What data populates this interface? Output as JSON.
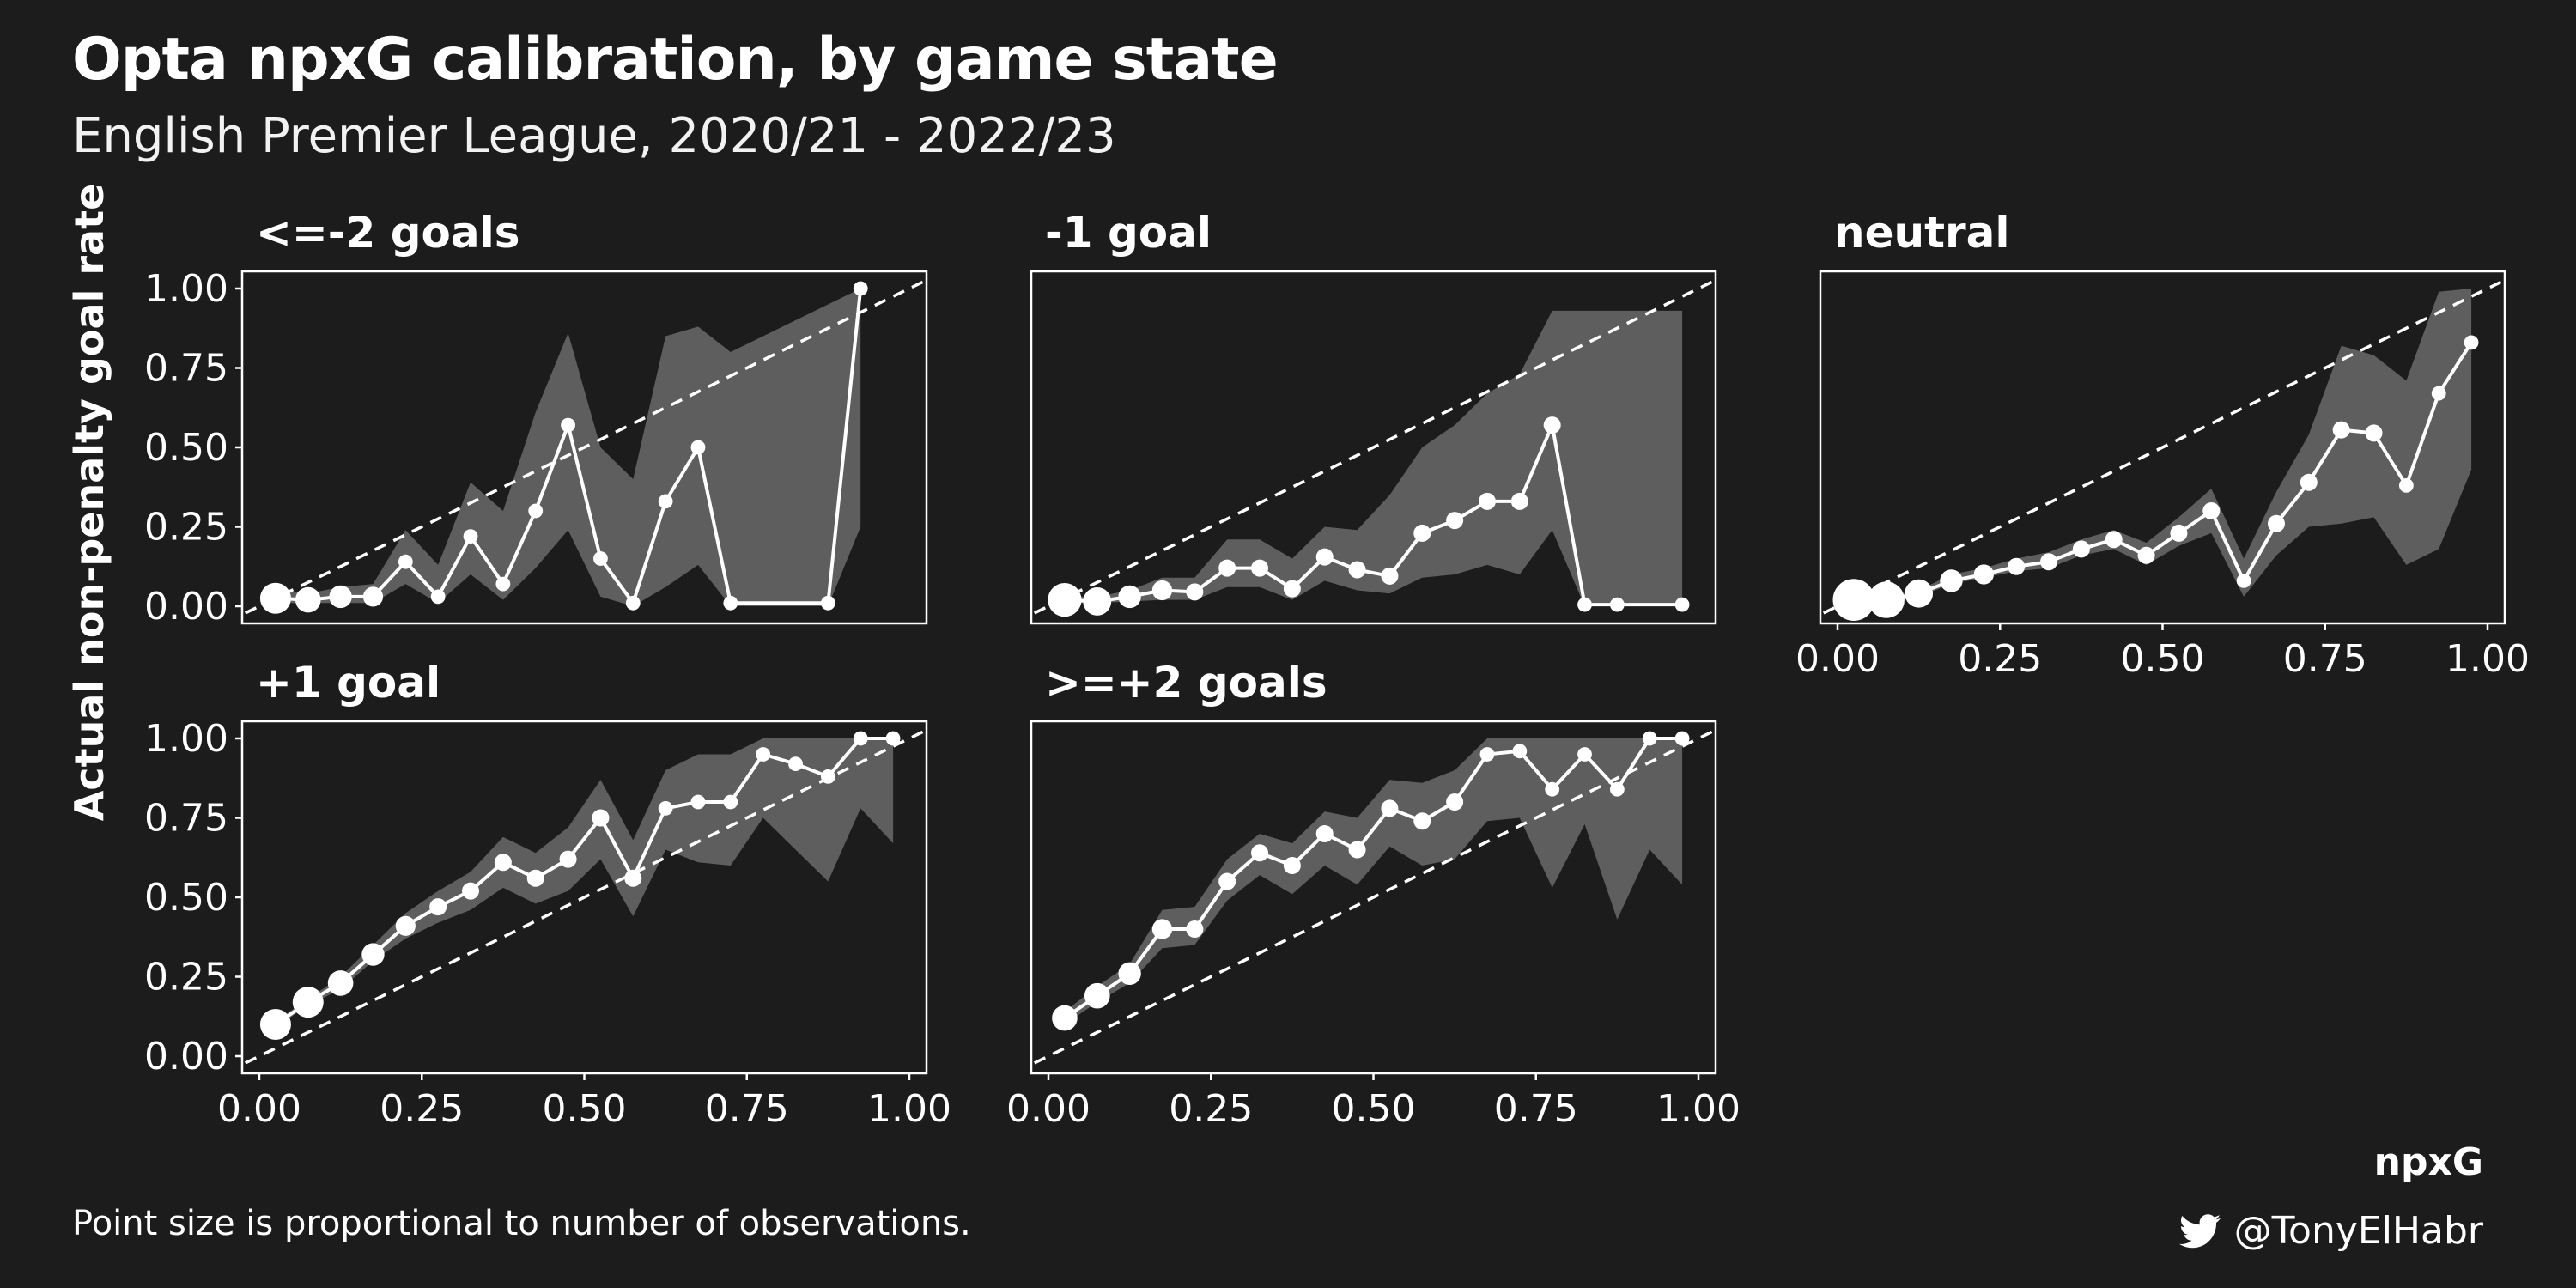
{
  "title": "Opta npxG calibration, by game state",
  "subtitle": "English Premier League, 2020/21 - 2022/23",
  "caption": "Point size is proportional to number of observations.",
  "brand": "npxG",
  "handle": "@TonyElHabr",
  "icons": {
    "social": "twitter-icon"
  },
  "colors": {
    "background": "#1c1c1c",
    "band": "#5e5e5e",
    "line": "#ffffff",
    "reference": "#ffffff"
  },
  "chart_data": {
    "type": "line",
    "xlabel": "",
    "ylabel": "Actual non-penalty goal rate",
    "xlim": [
      0,
      1
    ],
    "ylim": [
      0,
      1
    ],
    "x_ticks": [
      "0.00",
      "0.25",
      "0.50",
      "0.75",
      "1.00"
    ],
    "y_ticks": [
      "0.00",
      "0.25",
      "0.50",
      "0.75",
      "1.00"
    ],
    "reference_line": "y = x (dashed)",
    "grid": false,
    "panels": [
      {
        "title": "<=-2 goals",
        "x": [
          0.025,
          0.075,
          0.125,
          0.175,
          0.225,
          0.275,
          0.325,
          0.375,
          0.425,
          0.475,
          0.525,
          0.575,
          0.625,
          0.675,
          0.725,
          0.875,
          0.925
        ],
        "y": [
          0.025,
          0.02,
          0.03,
          0.03,
          0.14,
          0.03,
          0.22,
          0.07,
          0.3,
          0.57,
          0.15,
          0.01,
          0.33,
          0.5,
          0.01,
          0.01,
          1.0
        ],
        "lower": [
          0.01,
          0.01,
          0.01,
          0.01,
          0.07,
          0.01,
          0.1,
          0.02,
          0.12,
          0.24,
          0.03,
          0.0,
          0.06,
          0.13,
          0.0,
          0.0,
          0.25
        ],
        "upper": [
          0.05,
          0.04,
          0.06,
          0.07,
          0.24,
          0.13,
          0.39,
          0.3,
          0.61,
          0.86,
          0.5,
          0.4,
          0.85,
          0.88,
          0.8,
          0.95,
          1.0
        ],
        "size": [
          10,
          8,
          7,
          6,
          4,
          4,
          4,
          4,
          4,
          4,
          4,
          4,
          4,
          4,
          4,
          4,
          4
        ]
      },
      {
        "title": "-1 goal",
        "x": [
          0.025,
          0.075,
          0.125,
          0.175,
          0.225,
          0.275,
          0.325,
          0.375,
          0.425,
          0.475,
          0.525,
          0.575,
          0.625,
          0.675,
          0.725,
          0.775,
          0.825,
          0.875,
          0.975
        ],
        "y": [
          0.02,
          0.015,
          0.03,
          0.05,
          0.045,
          0.12,
          0.12,
          0.055,
          0.155,
          0.115,
          0.095,
          0.23,
          0.27,
          0.33,
          0.33,
          0.57,
          0.005,
          0.005,
          0.005
        ],
        "lower": [
          0.01,
          0.01,
          0.015,
          0.02,
          0.02,
          0.06,
          0.06,
          0.02,
          0.08,
          0.05,
          0.04,
          0.09,
          0.1,
          0.13,
          0.1,
          0.24,
          0.0,
          0.0,
          0.0
        ],
        "upper": [
          0.03,
          0.03,
          0.05,
          0.09,
          0.09,
          0.21,
          0.21,
          0.15,
          0.25,
          0.24,
          0.35,
          0.5,
          0.57,
          0.67,
          0.73,
          0.93,
          0.93,
          0.93,
          0.93
        ],
        "size": [
          11,
          9,
          7,
          6,
          5,
          5,
          5,
          5,
          5,
          5,
          5,
          5,
          5,
          5,
          5,
          5,
          4,
          4,
          4
        ]
      },
      {
        "title": "neutral",
        "x": [
          0.025,
          0.075,
          0.125,
          0.175,
          0.225,
          0.275,
          0.325,
          0.375,
          0.425,
          0.475,
          0.525,
          0.575,
          0.625,
          0.675,
          0.725,
          0.775,
          0.825,
          0.875,
          0.925,
          0.975
        ],
        "y": [
          0.02,
          0.02,
          0.04,
          0.08,
          0.1,
          0.125,
          0.14,
          0.18,
          0.21,
          0.16,
          0.23,
          0.3,
          0.08,
          0.26,
          0.39,
          0.555,
          0.545,
          0.38,
          0.67,
          0.83
        ],
        "lower": [
          0.01,
          0.01,
          0.03,
          0.07,
          0.09,
          0.11,
          0.12,
          0.16,
          0.18,
          0.13,
          0.19,
          0.23,
          0.03,
          0.16,
          0.25,
          0.26,
          0.28,
          0.13,
          0.18,
          0.43
        ],
        "upper": [
          0.03,
          0.03,
          0.05,
          0.1,
          0.12,
          0.15,
          0.17,
          0.21,
          0.24,
          0.2,
          0.28,
          0.37,
          0.15,
          0.36,
          0.54,
          0.82,
          0.79,
          0.71,
          0.99,
          1.0
        ],
        "size": [
          14,
          12,
          9,
          7,
          6,
          5,
          5,
          5,
          5,
          5,
          5,
          5,
          4,
          5,
          5,
          5,
          5,
          4,
          4,
          4
        ]
      },
      {
        "title": "+1 goal",
        "x": [
          0.025,
          0.075,
          0.125,
          0.175,
          0.225,
          0.275,
          0.325,
          0.375,
          0.425,
          0.475,
          0.525,
          0.575,
          0.625,
          0.675,
          0.725,
          0.775,
          0.825,
          0.875,
          0.925,
          0.975
        ],
        "y": [
          0.1,
          0.17,
          0.23,
          0.32,
          0.41,
          0.47,
          0.52,
          0.61,
          0.56,
          0.62,
          0.75,
          0.56,
          0.78,
          0.8,
          0.8,
          0.95,
          0.92,
          0.88,
          1.0,
          1.0
        ],
        "lower": [
          0.09,
          0.16,
          0.21,
          0.3,
          0.37,
          0.42,
          0.46,
          0.53,
          0.48,
          0.52,
          0.62,
          0.44,
          0.65,
          0.61,
          0.6,
          0.75,
          0.65,
          0.55,
          0.78,
          0.67
        ],
        "upper": [
          0.11,
          0.18,
          0.25,
          0.35,
          0.45,
          0.52,
          0.58,
          0.69,
          0.64,
          0.72,
          0.87,
          0.68,
          0.9,
          0.95,
          0.95,
          1.0,
          1.0,
          1.0,
          1.0,
          1.0
        ],
        "size": [
          10,
          10,
          8,
          7,
          6,
          5,
          5,
          5,
          5,
          5,
          5,
          5,
          4,
          4,
          4,
          4,
          4,
          4,
          4,
          4
        ]
      },
      {
        "title": ">=+2 goals",
        "x": [
          0.025,
          0.075,
          0.125,
          0.175,
          0.225,
          0.275,
          0.325,
          0.375,
          0.425,
          0.475,
          0.525,
          0.575,
          0.625,
          0.675,
          0.725,
          0.775,
          0.825,
          0.875,
          0.925,
          0.975
        ],
        "y": [
          0.12,
          0.19,
          0.26,
          0.4,
          0.4,
          0.55,
          0.64,
          0.6,
          0.7,
          0.65,
          0.78,
          0.74,
          0.8,
          0.95,
          0.96,
          0.84,
          0.95,
          0.84,
          1.0,
          1.0
        ],
        "lower": [
          0.1,
          0.17,
          0.23,
          0.34,
          0.35,
          0.49,
          0.57,
          0.51,
          0.6,
          0.54,
          0.66,
          0.6,
          0.62,
          0.74,
          0.75,
          0.53,
          0.73,
          0.43,
          0.65,
          0.54
        ],
        "upper": [
          0.14,
          0.22,
          0.29,
          0.46,
          0.47,
          0.62,
          0.7,
          0.67,
          0.77,
          0.75,
          0.87,
          0.86,
          0.9,
          1.0,
          1.0,
          1.0,
          1.0,
          1.0,
          1.0,
          1.0
        ],
        "size": [
          8,
          8,
          7,
          6,
          5,
          5,
          5,
          5,
          5,
          5,
          5,
          5,
          5,
          4,
          4,
          4,
          4,
          4,
          4,
          4
        ]
      }
    ]
  }
}
